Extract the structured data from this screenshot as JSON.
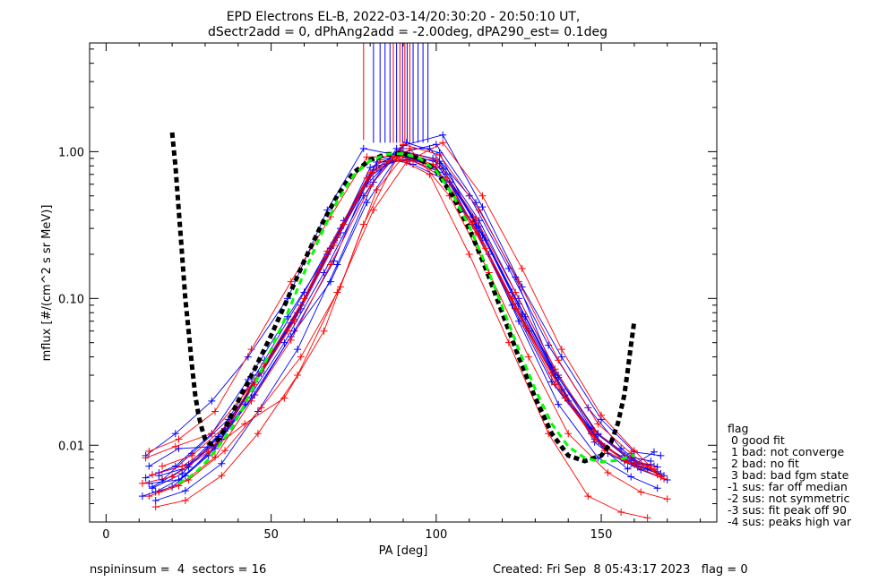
{
  "title_line1": "EPD Electrons EL-B, 2022-03-14/20:30:20 - 20:50:10 UT,",
  "title_line2": "dSectr2add = 0, dPhAng2add = -2.00deg, dPA290_est=   0.1deg",
  "footer": {
    "left": "nspininsum =  4  sectors = 16",
    "right": "Created: Fri Sep  8 05:43:17 2023   flag = 0"
  },
  "legend": {
    "title": "flag",
    "items": [
      " 0 good fit",
      " 1 bad: not converge",
      " 2 bad: no fit",
      " 3 bad: bad fgm state",
      "-1 sus: far off median",
      "-2 sus: not symmetric",
      "-3 sus: fit peak off 90",
      "-4 sus: peaks high var"
    ]
  },
  "colors": {
    "blue_series": "#0000ff",
    "red_series": "#ff0000",
    "fit_black": "#000000",
    "fit_green": "#00ff00"
  },
  "chart_data": {
    "type": "line",
    "xlabel": "PA [deg]",
    "ylabel": "mflux [#/(cm^2 s sr MeV)]",
    "xlim": [
      -5,
      185
    ],
    "ylim": [
      0.003,
      5.5
    ],
    "yscale": "log",
    "xticks": [
      0,
      50,
      100,
      150
    ],
    "xtick_labels": [
      "0",
      "50",
      "100",
      "150"
    ],
    "yticks": [
      0.01,
      0.1,
      1.0
    ],
    "ytick_labels": [
      "0.01",
      "0.10",
      "1.00"
    ],
    "grid": false,
    "legend_position": "lower-right outside",
    "series": [
      {
        "color": "blue",
        "x": [
          13,
          22,
          33,
          44,
          56,
          68,
          80,
          90,
          100,
          112,
          124,
          136,
          148,
          158,
          166
        ],
        "y": [
          0.0055,
          0.0058,
          0.0095,
          0.025,
          0.068,
          0.22,
          0.68,
          0.96,
          0.78,
          0.3,
          0.085,
          0.026,
          0.011,
          0.0076,
          0.0072
        ]
      },
      {
        "color": "blue",
        "x": [
          15,
          24,
          35,
          46,
          58,
          70,
          81,
          91,
          101,
          113,
          125,
          137,
          149,
          159,
          167
        ],
        "y": [
          0.0048,
          0.0062,
          0.011,
          0.03,
          0.08,
          0.26,
          0.75,
          0.92,
          0.86,
          0.34,
          0.1,
          0.03,
          0.012,
          0.0082,
          0.0066
        ]
      },
      {
        "color": "blue",
        "x": [
          12,
          21,
          32,
          43,
          55,
          67,
          79,
          89,
          99,
          111,
          123,
          135,
          147,
          157,
          165
        ],
        "y": [
          0.006,
          0.0072,
          0.012,
          0.028,
          0.075,
          0.2,
          0.6,
          1.02,
          0.9,
          0.36,
          0.11,
          0.034,
          0.013,
          0.0085,
          0.0078
        ]
      },
      {
        "color": "blue",
        "x": [
          14,
          23,
          34,
          45,
          57,
          69,
          80,
          90,
          102,
          114,
          126,
          138,
          150,
          160,
          168
        ],
        "y": [
          0.0052,
          0.0068,
          0.0105,
          0.022,
          0.06,
          0.18,
          0.7,
          1.1,
          1.3,
          0.42,
          0.12,
          0.04,
          0.015,
          0.009,
          0.0085
        ]
      },
      {
        "color": "blue",
        "x": [
          16,
          25,
          36,
          47,
          59,
          71,
          82,
          92,
          103,
          115,
          127,
          139,
          151,
          161,
          169
        ],
        "y": [
          0.0065,
          0.0074,
          0.013,
          0.032,
          0.09,
          0.3,
          0.85,
          0.88,
          0.7,
          0.25,
          0.075,
          0.022,
          0.0098,
          0.0072,
          0.0062
        ]
      },
      {
        "color": "blue",
        "x": [
          11,
          20,
          31,
          42,
          54,
          66,
          78,
          88,
          98,
          110,
          122,
          134,
          146,
          156,
          164
        ],
        "y": [
          0.0045,
          0.0052,
          0.0085,
          0.019,
          0.05,
          0.15,
          0.5,
          1.05,
          1.05,
          0.5,
          0.16,
          0.048,
          0.018,
          0.0095,
          0.0069
        ]
      },
      {
        "color": "blue",
        "x": [
          17,
          26,
          37,
          48,
          60,
          72,
          83,
          93,
          104,
          116,
          128,
          140,
          152,
          162,
          170
        ],
        "y": [
          0.0058,
          0.0088,
          0.015,
          0.038,
          0.11,
          0.34,
          0.92,
          0.82,
          0.62,
          0.2,
          0.06,
          0.02,
          0.0088,
          0.0068,
          0.0058
        ]
      },
      {
        "color": "blue",
        "x": [
          13,
          22,
          33,
          44,
          56,
          68,
          79,
          89,
          100,
          112,
          124,
          136,
          148,
          158,
          166
        ],
        "y": [
          0.0072,
          0.0095,
          0.0098,
          0.021,
          0.055,
          0.13,
          0.45,
          0.98,
          1.12,
          0.45,
          0.14,
          0.03,
          0.0105,
          0.0069,
          0.009
        ]
      },
      {
        "color": "blue",
        "x": [
          15,
          24,
          35,
          46,
          58,
          70,
          81,
          91,
          101,
          113,
          125,
          137,
          149,
          159,
          167
        ],
        "y": [
          0.0042,
          0.0049,
          0.0075,
          0.017,
          0.045,
          0.17,
          0.62,
          1.15,
          0.98,
          0.28,
          0.07,
          0.019,
          0.0082,
          0.0061,
          0.0051
        ]
      },
      {
        "color": "blue",
        "x": [
          12,
          21,
          32,
          43,
          55,
          67,
          78,
          88,
          99,
          111,
          123,
          135,
          147,
          157,
          165
        ],
        "y": [
          0.0085,
          0.012,
          0.02,
          0.04,
          0.1,
          0.4,
          1.05,
          0.95,
          0.8,
          0.32,
          0.09,
          0.027,
          0.012,
          0.0078,
          0.0074
        ]
      },
      {
        "color": "blue",
        "x": [
          14,
          23,
          34,
          45,
          57,
          69,
          80,
          90,
          101,
          113,
          125,
          137,
          149,
          159,
          167
        ],
        "y": [
          0.0051,
          0.0064,
          0.0115,
          0.027,
          0.072,
          0.24,
          0.78,
          0.99,
          0.83,
          0.31,
          0.092,
          0.029,
          0.0118,
          0.0079,
          0.0071
        ]
      },
      {
        "color": "blue",
        "x": [
          16,
          25,
          36,
          47,
          59,
          71,
          82,
          92,
          102,
          114,
          126,
          138,
          150,
          160,
          168
        ],
        "y": [
          0.0062,
          0.0071,
          0.0125,
          0.031,
          0.085,
          0.28,
          0.8,
          0.9,
          0.76,
          0.27,
          0.078,
          0.024,
          0.0102,
          0.0074,
          0.0064
        ]
      },
      {
        "color": "red",
        "x": [
          12,
          21,
          32,
          43,
          55,
          67,
          79,
          89,
          99,
          111,
          123,
          135,
          147,
          157,
          165
        ],
        "y": [
          0.0082,
          0.0098,
          0.012,
          0.024,
          0.06,
          0.21,
          0.66,
          0.97,
          0.82,
          0.33,
          0.1,
          0.031,
          0.012,
          0.0079,
          0.0072
        ]
      },
      {
        "color": "red",
        "x": [
          14,
          23,
          34,
          45,
          57,
          69,
          80,
          90,
          100,
          112,
          124,
          136,
          148,
          158,
          166
        ],
        "y": [
          0.0063,
          0.0072,
          0.0105,
          0.026,
          0.07,
          0.23,
          0.72,
          1.0,
          0.88,
          0.35,
          0.11,
          0.033,
          0.0125,
          0.0083,
          0.0068
        ]
      },
      {
        "color": "red",
        "x": [
          13,
          22,
          33,
          44,
          56,
          68,
          80,
          90,
          101,
          113,
          125,
          137,
          149,
          159,
          167
        ],
        "y": [
          0.0045,
          0.0053,
          0.0083,
          0.02,
          0.052,
          0.17,
          0.58,
          1.12,
          0.95,
          0.4,
          0.13,
          0.038,
          0.014,
          0.0088,
          0.0063
        ]
      },
      {
        "color": "red",
        "x": [
          15,
          24,
          35,
          46,
          58,
          70,
          81,
          91,
          102,
          114,
          126,
          138,
          150,
          160,
          168
        ],
        "y": [
          0.0038,
          0.0042,
          0.0062,
          0.012,
          0.03,
          0.11,
          0.4,
          0.85,
          1.15,
          0.5,
          0.16,
          0.045,
          0.016,
          0.0092,
          0.0061
        ]
      },
      {
        "color": "red",
        "x": [
          17,
          26,
          37,
          48,
          60,
          72,
          83,
          93,
          103,
          115,
          127,
          139,
          151,
          161,
          169
        ],
        "y": [
          0.0072,
          0.0085,
          0.014,
          0.036,
          0.1,
          0.32,
          0.88,
          0.86,
          0.66,
          0.22,
          0.065,
          0.021,
          0.0092,
          0.0071,
          0.0059
        ]
      },
      {
        "color": "red",
        "x": [
          11,
          20,
          31,
          42,
          54,
          66,
          78,
          88,
          98,
          110,
          122,
          134,
          146,
          156,
          164
        ],
        "y": [
          0.0055,
          0.0061,
          0.009,
          0.014,
          0.021,
          0.06,
          0.32,
          0.9,
          0.7,
          0.2,
          0.05,
          0.012,
          0.0045,
          0.0035,
          0.0032
        ]
      },
      {
        "color": "red",
        "x": [
          16,
          25,
          36,
          47,
          59,
          71,
          82,
          92,
          104,
          116,
          128,
          140,
          152,
          162,
          170
        ],
        "y": [
          0.0048,
          0.0058,
          0.0092,
          0.018,
          0.04,
          0.12,
          0.55,
          1.05,
          0.5,
          0.15,
          0.04,
          0.012,
          0.0065,
          0.0048,
          0.0043
        ]
      },
      {
        "color": "red",
        "x": [
          13,
          22,
          33,
          44,
          56,
          68,
          79,
          89,
          100,
          112,
          124,
          136,
          148,
          158,
          166
        ],
        "y": [
          0.0091,
          0.011,
          0.017,
          0.045,
          0.13,
          0.36,
          0.92,
          0.93,
          0.78,
          0.28,
          0.085,
          0.026,
          0.011,
          0.0076,
          0.0069
        ]
      }
    ],
    "fit_curves": [
      {
        "name": "",
        "style": "black dashed",
        "x": [
          20,
          21,
          22,
          23,
          24,
          25,
          26,
          27,
          28,
          29,
          30,
          31,
          32,
          34,
          36,
          40,
          45,
          50,
          55,
          60,
          65,
          70,
          75,
          80,
          85,
          90,
          95,
          100,
          105,
          110,
          115,
          120,
          125,
          130,
          135,
          140,
          145,
          150,
          153,
          155,
          157,
          158,
          159,
          160
        ],
        "y": [
          1.35,
          0.8,
          0.4,
          0.2,
          0.1,
          0.06,
          0.035,
          0.022,
          0.016,
          0.013,
          0.011,
          0.0104,
          0.0102,
          0.011,
          0.013,
          0.02,
          0.033,
          0.056,
          0.1,
          0.18,
          0.31,
          0.5,
          0.72,
          0.88,
          0.96,
          0.97,
          0.9,
          0.74,
          0.5,
          0.3,
          0.16,
          0.08,
          0.04,
          0.021,
          0.012,
          0.0085,
          0.0078,
          0.0085,
          0.0105,
          0.014,
          0.022,
          0.032,
          0.048,
          0.07
        ]
      },
      {
        "name": "",
        "style": "green dashed",
        "x": [
          22,
          25,
          28,
          31,
          34,
          38,
          42,
          46,
          50,
          55,
          60,
          65,
          70,
          75,
          80,
          85,
          90,
          95,
          100,
          105,
          110,
          115,
          120,
          125,
          130,
          135,
          140,
          145,
          150,
          155,
          160
        ],
        "y": [
          0.0055,
          0.006,
          0.0068,
          0.008,
          0.0098,
          0.013,
          0.019,
          0.029,
          0.045,
          0.08,
          0.15,
          0.27,
          0.46,
          0.69,
          0.87,
          0.96,
          0.97,
          0.9,
          0.74,
          0.51,
          0.31,
          0.17,
          0.088,
          0.045,
          0.024,
          0.014,
          0.0098,
          0.0082,
          0.0077,
          0.0079,
          0.0086
        ]
      }
    ],
    "spikes": [
      {
        "color": "red",
        "x": 78,
        "y_from": 1.2
      },
      {
        "color": "blue",
        "x": 81,
        "y_from": 1.15
      },
      {
        "color": "blue",
        "x": 83,
        "y_from": 1.15
      },
      {
        "color": "blue",
        "x": 84.5,
        "y_from": 1.15
      },
      {
        "color": "blue",
        "x": 86,
        "y_from": 1.15
      },
      {
        "color": "red",
        "x": 87,
        "y_from": 1.15
      },
      {
        "color": "blue",
        "x": 88,
        "y_from": 1.15
      },
      {
        "color": "red",
        "x": 89,
        "y_from": 1.15
      },
      {
        "color": "blue",
        "x": 89.8,
        "y_from": 1.15
      },
      {
        "color": "red",
        "x": 90.5,
        "y_from": 1.15
      },
      {
        "color": "blue",
        "x": 91.2,
        "y_from": 1.15
      },
      {
        "color": "red",
        "x": 92,
        "y_from": 1.15
      },
      {
        "color": "blue",
        "x": 93,
        "y_from": 1.15
      },
      {
        "color": "blue",
        "x": 94.5,
        "y_from": 1.15
      },
      {
        "color": "blue",
        "x": 96,
        "y_from": 1.15
      },
      {
        "color": "blue",
        "x": 97.5,
        "y_from": 1.15
      }
    ]
  }
}
